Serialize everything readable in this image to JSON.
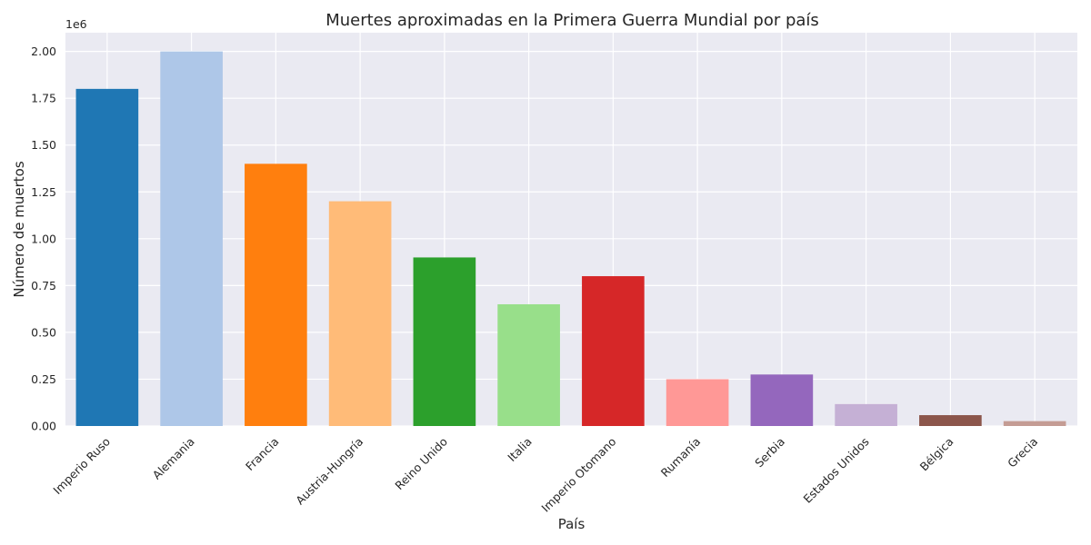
{
  "chart_data": {
    "type": "bar",
    "title": "Muertes aproximadas en la Primera Guerra Mundial por país",
    "xlabel": "País",
    "ylabel": "Número de muertos",
    "y_offset_label": "1e6",
    "ylim": [
      0,
      2100000
    ],
    "yticks": [
      0,
      250000,
      500000,
      750000,
      1000000,
      1250000,
      1500000,
      1750000,
      2000000
    ],
    "ytick_labels": [
      "0.00",
      "0.25",
      "0.50",
      "0.75",
      "1.00",
      "1.25",
      "1.50",
      "1.75",
      "2.00"
    ],
    "grid": true,
    "categories": [
      "Imperio Ruso",
      "Alemania",
      "Francia",
      "Austria-Hungría",
      "Reino Unido",
      "Italia",
      "Imperio Otomano",
      "Rumanía",
      "Serbia",
      "Estados Unidos",
      "Bélgica",
      "Grecia"
    ],
    "values": [
      1800000,
      2000000,
      1400000,
      1200000,
      900000,
      650000,
      800000,
      250000,
      275000,
      117000,
      58000,
      26000
    ],
    "colors": [
      "#1f77b4",
      "#aec7e8",
      "#ff7f0e",
      "#ffbb78",
      "#2ca02c",
      "#98df8a",
      "#d62728",
      "#ff9896",
      "#9467bd",
      "#c5b0d5",
      "#8c564b",
      "#c49c94"
    ],
    "background_color": "#eaeaf2"
  }
}
